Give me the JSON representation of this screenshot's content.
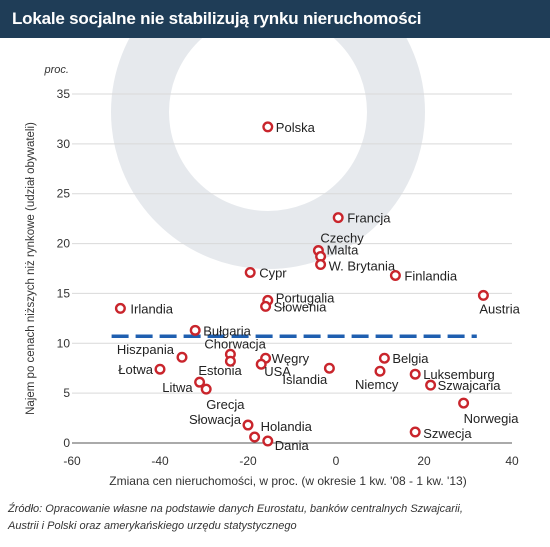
{
  "title": "Lokale socjalne nie stabilizują rynku nieruchomości",
  "colors": {
    "title_bg": "#1f3d57",
    "point": "#c9252c",
    "mean_line": "#1f5fb0",
    "watermark": "#e6e9ed"
  },
  "chart_data": {
    "type": "scatter",
    "xlabel": "Zmiana cen nieruchomości, w proc. (w okresie 1 kw. '08 - 1 kw. '13)",
    "ylabel": "Najem po cenach niższych niż rynkowe (udział obywateli)",
    "yunit": "proc.",
    "xlim": [
      -60,
      40
    ],
    "ylim": [
      0,
      35
    ],
    "xticks": [
      "-60",
      "-40",
      "-20",
      "0",
      "20",
      "40"
    ],
    "yticks": [
      "0",
      "5",
      "10",
      "15",
      "20",
      "25",
      "30",
      "35"
    ],
    "grid": true,
    "mean_y": 10.7,
    "points": [
      {
        "label": "Polska",
        "x": -15.5,
        "y": 31.7
      },
      {
        "label": "Francja",
        "x": 0.5,
        "y": 22.6
      },
      {
        "label": "Czechy",
        "x": -4,
        "y": 19.3
      },
      {
        "label": "Malta",
        "x": -3.5,
        "y": 18.7
      },
      {
        "label": "W. Brytania",
        "x": -3.5,
        "y": 17.9
      },
      {
        "label": "Finlandia",
        "x": 13.5,
        "y": 16.8
      },
      {
        "label": "Cypr",
        "x": -19.5,
        "y": 17.1
      },
      {
        "label": "Austria",
        "x": 33.5,
        "y": 14.8
      },
      {
        "label": "Portugalia",
        "x": -15.5,
        "y": 14.3
      },
      {
        "label": "Słowenia",
        "x": -16,
        "y": 13.7
      },
      {
        "label": "Irlandia",
        "x": -49,
        "y": 13.5
      },
      {
        "label": "Bułgaria",
        "x": -32,
        "y": 11.3
      },
      {
        "label": "Chorwacja",
        "x": -24,
        "y": 8.9
      },
      {
        "label": "Hiszpania",
        "x": -35,
        "y": 8.6
      },
      {
        "label": "Estonia",
        "x": -24,
        "y": 8.2
      },
      {
        "label": "Węgry",
        "x": -16,
        "y": 8.5
      },
      {
        "label": "USA",
        "x": -17,
        "y": 7.9
      },
      {
        "label": "Łotwa",
        "x": -40,
        "y": 7.4
      },
      {
        "label": "Islandia",
        "x": -1.5,
        "y": 7.5
      },
      {
        "label": "Belgia",
        "x": 11,
        "y": 8.5
      },
      {
        "label": "Niemcy",
        "x": 10,
        "y": 7.2
      },
      {
        "label": "Luksemburg",
        "x": 18,
        "y": 6.9
      },
      {
        "label": "Szwajcaria",
        "x": 21.5,
        "y": 5.8
      },
      {
        "label": "Litwa",
        "x": -31,
        "y": 6.1
      },
      {
        "label": "Grecja",
        "x": -29.5,
        "y": 5.4
      },
      {
        "label": "Norwegia",
        "x": 29,
        "y": 4
      },
      {
        "label": "Słowacja",
        "x": -20,
        "y": 1.8
      },
      {
        "label": "Holandia",
        "x": -18.5,
        "y": 0.6
      },
      {
        "label": "Dania",
        "x": -15.5,
        "y": 0.2
      },
      {
        "label": "Szwecja",
        "x": 18,
        "y": 1.1
      }
    ]
  },
  "source": {
    "line1": "Źródło: Opracowanie własne na podstawie danych Eurostatu, banków centralnych Szwajcarii,",
    "line2": "Austrii i Polski oraz amerykańskiego urzędu statystycznego"
  }
}
